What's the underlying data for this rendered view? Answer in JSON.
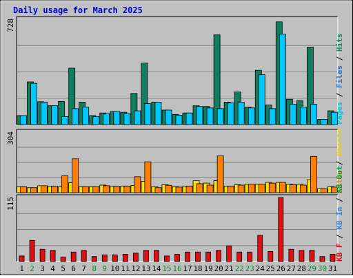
{
  "chart_data": {
    "type": "bar",
    "title": "Daily usage for March 2025",
    "categories": [
      "1",
      "2",
      "3",
      "4",
      "5",
      "6",
      "7",
      "8",
      "9",
      "10",
      "11",
      "12",
      "13",
      "14",
      "15",
      "16",
      "17",
      "18",
      "19",
      "20",
      "21",
      "22",
      "23",
      "24",
      "25",
      "26",
      "27",
      "28",
      "29",
      "30",
      "31"
    ],
    "weekend_days": [
      "2",
      "8",
      "9",
      "15",
      "16",
      "22",
      "23",
      "29",
      "30"
    ],
    "colors": {
      "frame_bg": "#c0c0c0",
      "title": "#0000cc",
      "weekday_label": "#000000",
      "weekend_label": "#118833",
      "grid": "#808080",
      "hits": "#117f5f",
      "files": "#00c8ff",
      "pages": "#00e8e8",
      "sites": "#ff8000",
      "visits": "#ffe000",
      "kbin": "#3b82d4",
      "kbout": "#00a050",
      "kbf": "#dd1111"
    },
    "panels": [
      {
        "id": "top",
        "ymax": 728,
        "ymax_label": "728",
        "right_label": [
          {
            "text": "Pages",
            "color": "#00c8d8"
          },
          {
            "text": " / ",
            "color": "#000000"
          },
          {
            "text": "Files",
            "color": "#2277cc"
          },
          {
            "text": " / ",
            "color": "#000000"
          },
          {
            "text": "Hits",
            "color": "#118866"
          }
        ],
        "series": [
          {
            "name": "Hits",
            "color": "#117f5f",
            "values": [
              62,
              295,
              158,
              130,
              160,
              390,
              155,
              62,
              80,
              90,
              85,
              215,
              425,
              155,
              100,
              70,
              80,
              130,
              125,
              620,
              155,
              225,
              120,
              375,
              135,
              710,
              175,
              165,
              535,
              35,
              95
            ]
          },
          {
            "name": "Files",
            "color": "#00c8ff",
            "values": [
              62,
              285,
              155,
              130,
              55,
              110,
              120,
              55,
              75,
              90,
              75,
              95,
              145,
              155,
              100,
              65,
              80,
              125,
              115,
              110,
              150,
              155,
              115,
              345,
              110,
              625,
              140,
              120,
              140,
              35,
              85
            ]
          }
        ]
      },
      {
        "id": "middle",
        "ymax": 304,
        "ymax_label": "304",
        "right_label": [
          {
            "text": "Sites",
            "color": "#ff8000"
          },
          {
            "text": " / ",
            "color": "#000000"
          },
          {
            "text": "Visits",
            "color": "#e8d000"
          }
        ],
        "series": [
          {
            "name": "Visits",
            "color": "#ffe000",
            "values": [
              30,
              25,
              35,
              32,
              30,
              50,
              30,
              30,
              38,
              32,
              33,
              36,
              57,
              30,
              40,
              30,
              33,
              60,
              48,
              60,
              33,
              40,
              42,
              42,
              52,
              52,
              42,
              42,
              65,
              20,
              30
            ]
          },
          {
            "name": "Sites",
            "color": "#ff8000",
            "values": [
              30,
              25,
              35,
              32,
              85,
              170,
              30,
              30,
              35,
              32,
              33,
              80,
              155,
              25,
              37,
              28,
              33,
              45,
              38,
              185,
              33,
              38,
              42,
              42,
              48,
              52,
              40,
              38,
              182,
              20,
              28
            ]
          }
        ]
      },
      {
        "id": "bottom",
        "ymax": 115,
        "ymax_label": "115",
        "right_label": [
          {
            "text": "KB F",
            "color": "#dd1111"
          },
          {
            "text": " / ",
            "color": "#000000"
          },
          {
            "text": "KB In",
            "color": "#3b82d4"
          },
          {
            "text": " / ",
            "color": "#000000"
          },
          {
            "text": "KB Out",
            "color": "#00a050"
          }
        ],
        "series": [
          {
            "name": "KB F",
            "color": "#dd1111",
            "values": [
              10,
              38,
              22,
              20,
              8,
              17,
              20,
              9,
              12,
              12,
              13,
              15,
              20,
              20,
              10,
              13,
              17,
              17,
              17,
              20,
              28,
              17,
              17,
              47,
              18,
              115,
              22,
              20,
              20,
              9,
              13
            ]
          }
        ]
      }
    ]
  }
}
